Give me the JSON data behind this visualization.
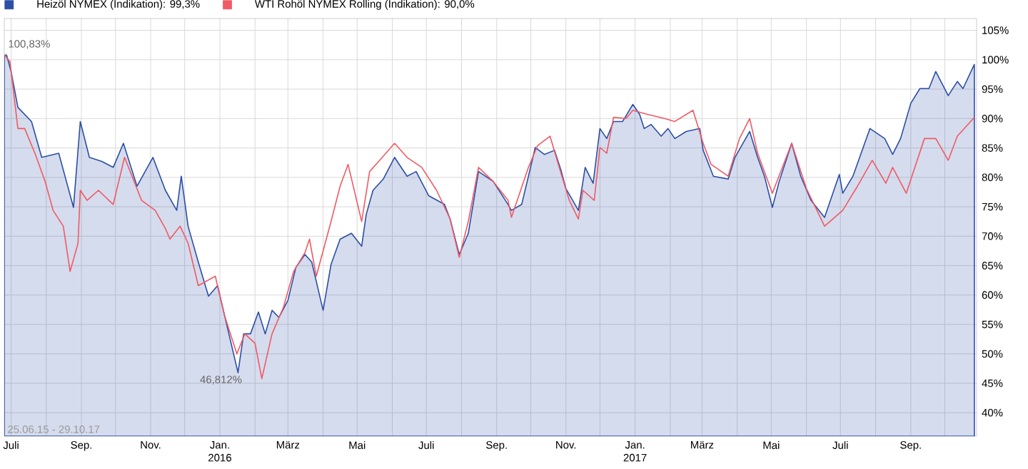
{
  "chart_data": {
    "type": "line",
    "xlim": [
      "2015-06-25",
      "2017-10-29"
    ],
    "xticks": [
      {
        "value": "2015-07-01",
        "label": "Juli"
      },
      {
        "value": "2015-08-01",
        "label": null
      },
      {
        "value": "2015-09-01",
        "label": "Sep."
      },
      {
        "value": "2015-10-01",
        "label": null
      },
      {
        "value": "2015-11-01",
        "label": "Nov."
      },
      {
        "value": "2015-12-01",
        "label": null
      },
      {
        "value": "2016-01-01",
        "label": "Jan. 2016"
      },
      {
        "value": "2016-02-01",
        "label": null
      },
      {
        "value": "2016-03-01",
        "label": "März"
      },
      {
        "value": "2016-04-01",
        "label": null
      },
      {
        "value": "2016-05-01",
        "label": "Mai"
      },
      {
        "value": "2016-06-01",
        "label": null
      },
      {
        "value": "2016-07-01",
        "label": "Juli"
      },
      {
        "value": "2016-08-01",
        "label": null
      },
      {
        "value": "2016-09-01",
        "label": "Sep."
      },
      {
        "value": "2016-10-01",
        "label": null
      },
      {
        "value": "2016-11-01",
        "label": "Nov."
      },
      {
        "value": "2016-12-01",
        "label": null
      },
      {
        "value": "2017-01-01",
        "label": "Jan. 2017"
      },
      {
        "value": "2017-02-01",
        "label": null
      },
      {
        "value": "2017-03-01",
        "label": "März"
      },
      {
        "value": "2017-04-01",
        "label": null
      },
      {
        "value": "2017-05-01",
        "label": "Mai"
      },
      {
        "value": "2017-06-01",
        "label": null
      },
      {
        "value": "2017-07-01",
        "label": "Juli"
      },
      {
        "value": "2017-08-01",
        "label": null
      },
      {
        "value": "2017-09-01",
        "label": "Sep."
      },
      {
        "value": "2017-10-01",
        "label": null
      }
    ],
    "ylim": [
      36,
      107
    ],
    "yticks": [
      {
        "value": 40,
        "label": "40%"
      },
      {
        "value": 45,
        "label": "45%"
      },
      {
        "value": 50,
        "label": "50%"
      },
      {
        "value": 55,
        "label": "55%"
      },
      {
        "value": 60,
        "label": "60%"
      },
      {
        "value": 65,
        "label": "65%"
      },
      {
        "value": 70,
        "label": "70%"
      },
      {
        "value": 75,
        "label": "75%"
      },
      {
        "value": 80,
        "label": "80%"
      },
      {
        "value": 85,
        "label": "85%"
      },
      {
        "value": 90,
        "label": "90%"
      },
      {
        "value": 95,
        "label": "95%"
      },
      {
        "value": 100,
        "label": "100%"
      },
      {
        "value": 105,
        "label": "105%"
      }
    ],
    "grid": true,
    "legend": "top left",
    "annotations": [
      {
        "text": "100,83%",
        "x": "2015-06-25",
        "y": 100.83
      },
      {
        "text": "46,812%",
        "x": "2016-01-17",
        "y": 46.812
      },
      "25.06.15 - 29.10.17"
    ],
    "series": [
      {
        "name": "Heizöl NYMEX (Indikation): 99,3%",
        "type": "area",
        "color": "#2b4ea6",
        "x": [
          "2015-06-25",
          "2015-06-27",
          "2015-07-01",
          "2015-07-07",
          "2015-07-19",
          "2015-07-28",
          "2015-08-12",
          "2015-08-25",
          "2015-08-31",
          "2015-09-08",
          "2015-09-19",
          "2015-09-29",
          "2015-10-08",
          "2015-10-20",
          "2015-11-03",
          "2015-11-14",
          "2015-11-24",
          "2015-11-28",
          "2015-12-04",
          "2015-12-13",
          "2015-12-22",
          "2015-12-30",
          "2016-01-07",
          "2016-01-17",
          "2016-01-22",
          "2016-01-28",
          "2016-02-04",
          "2016-02-10",
          "2016-02-16",
          "2016-02-22",
          "2016-03-01",
          "2016-03-08",
          "2016-03-16",
          "2016-03-22",
          "2016-04-01",
          "2016-04-08",
          "2016-04-16",
          "2016-04-26",
          "2016-05-05",
          "2016-05-09",
          "2016-05-15",
          "2016-05-24",
          "2016-06-03",
          "2016-06-14",
          "2016-06-22",
          "2016-07-03",
          "2016-07-17",
          "2016-07-22",
          "2016-07-30",
          "2016-08-07",
          "2016-08-16",
          "2016-08-29",
          "2016-09-11",
          "2016-09-14",
          "2016-09-23",
          "2016-09-29",
          "2016-10-05",
          "2016-10-13",
          "2016-10-22",
          "2016-10-28",
          "2016-11-01",
          "2016-11-07",
          "2016-11-12",
          "2016-11-18",
          "2016-11-25",
          "2016-12-01",
          "2016-12-07",
          "2016-12-13",
          "2016-12-21",
          "2016-12-30",
          "2017-01-05",
          "2017-01-09",
          "2017-01-15",
          "2017-01-24",
          "2017-01-30",
          "2017-02-05",
          "2017-02-15",
          "2017-02-27",
          "2017-03-02",
          "2017-03-11",
          "2017-03-24",
          "2017-03-30",
          "2017-04-12",
          "2017-04-19",
          "2017-04-25",
          "2017-05-02",
          "2017-05-08",
          "2017-05-19",
          "2017-05-27",
          "2017-06-05",
          "2017-06-17",
          "2017-06-30",
          "2017-07-03",
          "2017-07-12",
          "2017-07-27",
          "2017-08-09",
          "2017-08-16",
          "2017-08-23",
          "2017-09-01",
          "2017-09-09",
          "2017-09-17",
          "2017-09-23",
          "2017-10-04",
          "2017-10-12",
          "2017-10-17",
          "2017-10-27"
        ],
        "values": [
          100.8,
          100.8,
          98,
          91.9,
          89.5,
          83.4,
          84.1,
          74.9,
          89.5,
          83.4,
          82.7,
          81.7,
          85.8,
          78.5,
          83.4,
          77.8,
          74.4,
          80.2,
          71.7,
          65.6,
          59.8,
          61.6,
          55,
          46.8,
          53.4,
          53.4,
          57.1,
          53.4,
          57.4,
          56.2,
          59.1,
          64.7,
          66.9,
          65.6,
          57.4,
          65.2,
          69.5,
          70.5,
          68.3,
          73.7,
          77.8,
          79.7,
          83.4,
          80.2,
          81,
          76.9,
          75.4,
          72.9,
          66.9,
          70.5,
          81,
          79.3,
          75.4,
          74.4,
          75.4,
          80.2,
          85.1,
          83.9,
          84.6,
          81,
          78.1,
          76.1,
          74.4,
          81.7,
          79,
          88.3,
          86.6,
          89.5,
          89.5,
          92.4,
          90.7,
          88.3,
          89,
          87,
          88.3,
          86.6,
          87.8,
          88.3,
          84.6,
          80.2,
          79.7,
          83.4,
          87.8,
          83.4,
          80.2,
          74.9,
          79.3,
          85.8,
          80.2,
          76.1,
          73.2,
          80.5,
          77.3,
          80.2,
          88.3,
          86.6,
          83.9,
          86.6,
          92.6,
          95.1,
          95.1,
          98,
          93.9,
          96.3,
          95.1,
          99.2
        ]
      },
      {
        "name": "WTI Rohöl NYMEX Rolling (Indikation): 90,0%",
        "color": "#f05a64",
        "x": [
          "2015-06-25",
          "2015-06-30",
          "2015-07-03",
          "2015-07-07",
          "2015-07-13",
          "2015-07-22",
          "2015-07-31",
          "2015-08-07",
          "2015-08-16",
          "2015-08-22",
          "2015-08-29",
          "2015-08-31",
          "2015-09-06",
          "2015-09-16",
          "2015-09-29",
          "2015-10-09",
          "2015-10-24",
          "2015-11-05",
          "2015-11-14",
          "2015-11-18",
          "2015-11-27",
          "2015-12-04",
          "2015-12-13",
          "2015-12-28",
          "2016-01-05",
          "2016-01-16",
          "2016-01-23",
          "2016-02-01",
          "2016-02-07",
          "2016-02-16",
          "2016-02-26",
          "2016-03-06",
          "2016-03-16",
          "2016-03-20",
          "2016-03-26",
          "2016-04-08",
          "2016-04-16",
          "2016-04-23",
          "2016-05-05",
          "2016-05-12",
          "2016-05-20",
          "2016-06-03",
          "2016-06-14",
          "2016-06-27",
          "2016-07-10",
          "2016-07-22",
          "2016-07-30",
          "2016-08-07",
          "2016-08-16",
          "2016-08-29",
          "2016-09-11",
          "2016-09-14",
          "2016-09-29",
          "2016-10-07",
          "2016-10-18",
          "2016-10-28",
          "2016-11-04",
          "2016-11-12",
          "2016-11-16",
          "2016-11-26",
          "2016-12-01",
          "2016-12-07",
          "2016-12-13",
          "2016-12-24",
          "2016-12-30",
          "2017-01-12",
          "2017-01-27",
          "2017-02-05",
          "2017-02-21",
          "2017-03-02",
          "2017-03-09",
          "2017-03-24",
          "2017-04-03",
          "2017-04-12",
          "2017-04-19",
          "2017-05-02",
          "2017-05-19",
          "2017-06-01",
          "2017-06-17",
          "2017-07-03",
          "2017-07-16",
          "2017-07-29",
          "2017-08-10",
          "2017-08-16",
          "2017-08-28",
          "2017-09-13",
          "2017-09-23",
          "2017-10-04",
          "2017-10-12",
          "2017-10-27"
        ],
        "values": [
          100.8,
          99.7,
          94.8,
          88.3,
          88.3,
          84.1,
          79.3,
          74.4,
          71.7,
          64,
          68.8,
          77.8,
          76.1,
          77.8,
          75.4,
          83.4,
          76.1,
          74.4,
          71.3,
          69.5,
          71.7,
          68.8,
          61.6,
          63.2,
          56.6,
          50,
          53.4,
          51.8,
          45.8,
          53.4,
          57.9,
          64,
          67.2,
          69.5,
          63.2,
          72.5,
          78.5,
          82.2,
          72.5,
          81,
          82.7,
          85.8,
          83.4,
          81.7,
          77.8,
          72.9,
          66.4,
          72.5,
          81.7,
          79.3,
          76.1,
          73.2,
          81.7,
          85.4,
          87,
          80.5,
          76.1,
          72.9,
          77.8,
          76.1,
          85.1,
          84.1,
          90.2,
          90,
          91.4,
          90.7,
          90,
          89.5,
          91.4,
          85.8,
          82.2,
          80.2,
          86.6,
          90,
          84.1,
          77.3,
          85.8,
          78.1,
          71.7,
          74.4,
          78.5,
          82.9,
          79,
          81.7,
          77.3,
          86.6,
          86.6,
          82.9,
          87,
          90.2
        ]
      }
    ]
  }
}
